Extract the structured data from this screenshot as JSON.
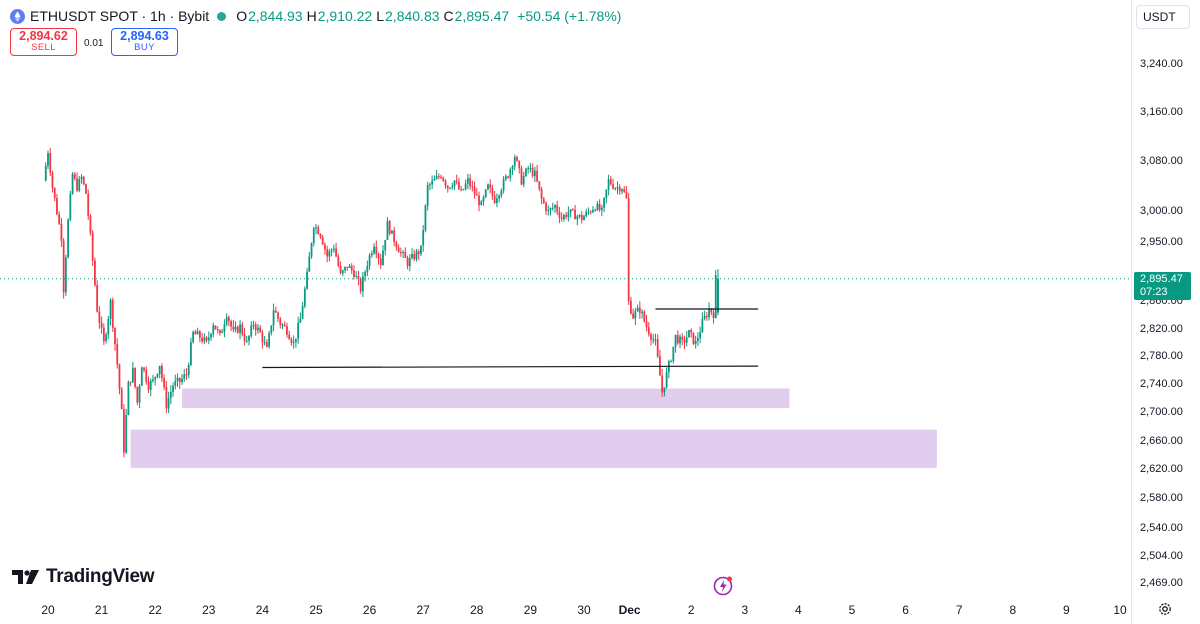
{
  "header": {
    "symbol_title": "ETHUSDT SPOT · 1h · Bybit",
    "open_label": "O",
    "open_value": "2,844.93",
    "high_label": "H",
    "high_value": "2,910.22",
    "low_label": "L",
    "low_value": "2,840.83",
    "close_label": "C",
    "close_value": "2,895.47",
    "change": "+50.54 (+1.78%)"
  },
  "trade": {
    "sell_price": "2,894.62",
    "sell_label": "SELL",
    "spread": "0.01",
    "buy_price": "2,894.63",
    "buy_label": "BUY"
  },
  "currency_button": "USDT",
  "brand": "TradingView",
  "price_tag": {
    "price": "2,895.47",
    "countdown": "07:23"
  },
  "y_axis": {
    "labels": [
      "3,240.00",
      "3,160.00",
      "3,080.00",
      "3,000.00",
      "2,950.00",
      "2,860.00",
      "2,820.00",
      "2,780.00",
      "2,740.00",
      "2,700.00",
      "2,660.00",
      "2,620.00",
      "2,580.00",
      "2,540.00",
      "2,504.00",
      "2,469.00"
    ]
  },
  "x_axis": {
    "labels": [
      "20",
      "21",
      "22",
      "23",
      "24",
      "25",
      "26",
      "27",
      "28",
      "29",
      "30",
      "Dec",
      "2",
      "3",
      "4",
      "5",
      "6",
      "7",
      "8",
      "9",
      "10"
    ]
  },
  "colors": {
    "up": "#089981",
    "down": "#f23645",
    "zone": "#e1cdee",
    "line": "#131722"
  },
  "icons": {
    "logo": "ethereum-coin-icon",
    "settings": "gear-icon",
    "flash": "lightning-icon"
  },
  "chart_data": {
    "type": "candlestick",
    "timeframe": "1h",
    "ylim": [
      2469,
      3240
    ],
    "path_points": [
      [
        "Nov 19 23:00",
        3050
      ],
      [
        "Nov 20 01:00",
        3098
      ],
      [
        "Nov 20 03:00",
        3040
      ],
      [
        "Nov 20 05:00",
        3000
      ],
      [
        "Nov 20 07:00",
        2960
      ],
      [
        "Nov 20 08:00",
        2880
      ],
      [
        "Nov 20 10:00",
        2985
      ],
      [
        "Nov 20 12:00",
        3060
      ],
      [
        "Nov 20 14:00",
        3040
      ],
      [
        "Nov 20 16:00",
        3055
      ],
      [
        "Nov 20 18:00",
        3030
      ],
      [
        "Nov 20 20:00",
        2960
      ],
      [
        "Nov 20 23:00",
        2850
      ],
      [
        "Nov 21 02:00",
        2800
      ],
      [
        "Nov 21 05:00",
        2860
      ],
      [
        "Nov 21 08:00",
        2770
      ],
      [
        "Nov 21 10:00",
        2700
      ],
      [
        "Nov 21 11:00",
        2650
      ],
      [
        "Nov 21 13:00",
        2740
      ],
      [
        "Nov 21 15:00",
        2760
      ],
      [
        "Nov 21 17:00",
        2715
      ],
      [
        "Nov 21 19:00",
        2770
      ],
      [
        "Nov 21 22:00",
        2740
      ],
      [
        "Nov 22 00:00",
        2745
      ],
      [
        "Nov 22 03:00",
        2770
      ],
      [
        "Nov 22 06:00",
        2712
      ],
      [
        "Nov 22 09:00",
        2740
      ],
      [
        "Nov 22 12:00",
        2745
      ],
      [
        "Nov 22 15:00",
        2755
      ],
      [
        "Nov 22 18:00",
        2815
      ],
      [
        "Nov 22 21:00",
        2810
      ],
      [
        "Nov 23 00:00",
        2800
      ],
      [
        "Nov 23 03:00",
        2830
      ],
      [
        "Nov 23 06:00",
        2810
      ],
      [
        "Nov 23 09:00",
        2845
      ],
      [
        "Nov 23 12:00",
        2815
      ],
      [
        "Nov 23 15:00",
        2825
      ],
      [
        "Nov 23 18:00",
        2800
      ],
      [
        "Nov 23 21:00",
        2830
      ],
      [
        "Nov 24 00:00",
        2815
      ],
      [
        "Nov 24 03:00",
        2790
      ],
      [
        "Nov 24 06:00",
        2850
      ],
      [
        "Nov 24 09:00",
        2830
      ],
      [
        "Nov 24 12:00",
        2820
      ],
      [
        "Nov 24 15:00",
        2800
      ],
      [
        "Nov 24 18:00",
        2835
      ],
      [
        "Nov 24 21:00",
        2900
      ],
      [
        "Nov 25 00:00",
        2980
      ],
      [
        "Nov 25 03:00",
        2965
      ],
      [
        "Nov 25 06:00",
        2930
      ],
      [
        "Nov 25 09:00",
        2945
      ],
      [
        "Nov 25 12:00",
        2900
      ],
      [
        "Nov 25 15:00",
        2915
      ],
      [
        "Nov 25 18:00",
        2905
      ],
      [
        "Nov 25 21:00",
        2880
      ],
      [
        "Nov 26 00:00",
        2920
      ],
      [
        "Nov 26 03:00",
        2950
      ],
      [
        "Nov 26 06:00",
        2920
      ],
      [
        "Nov 26 09:00",
        2980
      ],
      [
        "Nov 26 12:00",
        2955
      ],
      [
        "Nov 26 15:00",
        2935
      ],
      [
        "Nov 26 18:00",
        2920
      ],
      [
        "Nov 26 21:00",
        2930
      ],
      [
        "Nov 27 00:00",
        2940
      ],
      [
        "Nov 27 03:00",
        3040
      ],
      [
        "Nov 27 06:00",
        3050
      ],
      [
        "Nov 27 09:00",
        3060
      ],
      [
        "Nov 27 12:00",
        3040
      ],
      [
        "Nov 27 15:00",
        3050
      ],
      [
        "Nov 27 18:00",
        3030
      ],
      [
        "Nov 27 21:00",
        3050
      ],
      [
        "Nov 28 00:00",
        3030
      ],
      [
        "Nov 28 03:00",
        3010
      ],
      [
        "Nov 28 06:00",
        3040
      ],
      [
        "Nov 28 09:00",
        3020
      ],
      [
        "Nov 28 12:00",
        3040
      ],
      [
        "Nov 28 15:00",
        3060
      ],
      [
        "Nov 28 18:00",
        3090
      ],
      [
        "Nov 28 21:00",
        3050
      ],
      [
        "Nov 29 00:00",
        3070
      ],
      [
        "Nov 29 03:00",
        3060
      ],
      [
        "Nov 29 06:00",
        3020
      ],
      [
        "Nov 29 09:00",
        3000
      ],
      [
        "Nov 29 12:00",
        3010
      ],
      [
        "Nov 29 15:00",
        2990
      ],
      [
        "Nov 29 18:00",
        3000
      ],
      [
        "Nov 29 21:00",
        2995
      ],
      [
        "Nov 30 00:00",
        2990
      ],
      [
        "Nov 30 03:00",
        3000
      ],
      [
        "Nov 30 06:00",
        3010
      ],
      [
        "Nov 30 09:00",
        3000
      ],
      [
        "Nov 30 12:00",
        3050
      ],
      [
        "Nov 30 15:00",
        3040
      ],
      [
        "Nov 30 18:00",
        3040
      ],
      [
        "Nov 30 20:00",
        3020
      ],
      [
        "Nov 30 21:00",
        2860
      ],
      [
        "Nov 30 23:00",
        2840
      ],
      [
        "Dec 1 02:00",
        2850
      ],
      [
        "Dec 1 05:00",
        2825
      ],
      [
        "Dec 1 09:00",
        2800
      ],
      [
        "Dec 1 12:00",
        2730
      ],
      [
        "Dec 1 14:00",
        2755
      ],
      [
        "Dec 1 16:00",
        2780
      ],
      [
        "Dec 1 18:00",
        2810
      ],
      [
        "Dec 1 21:00",
        2800
      ],
      [
        "Dec 2 00:00",
        2815
      ],
      [
        "Dec 2 03:00",
        2800
      ],
      [
        "Dec 2 06:00",
        2830
      ],
      [
        "Dec 2 09:00",
        2850
      ],
      [
        "Dec 2 11:00",
        2844
      ],
      [
        "Dec 2 12:00",
        2895
      ]
    ],
    "drawings": {
      "horizontal_lines": [
        {
          "price_start": 2765,
          "price_end": 2767,
          "from": "Nov 24 00:00",
          "to": "Dec 3 06:00"
        },
        {
          "price": 2850,
          "from": "Dec 1 08:00",
          "to": "Dec 3 06:00"
        }
      ],
      "zones": [
        {
          "from": "Nov 22 12:00",
          "to": "Dec 3 20:00",
          "low": 2707,
          "high": 2735
        },
        {
          "from": "Nov 21 13:00",
          "to": "Dec 6 14:00",
          "low": 2623,
          "high": 2677
        }
      ]
    },
    "current_price": 2895.47
  }
}
